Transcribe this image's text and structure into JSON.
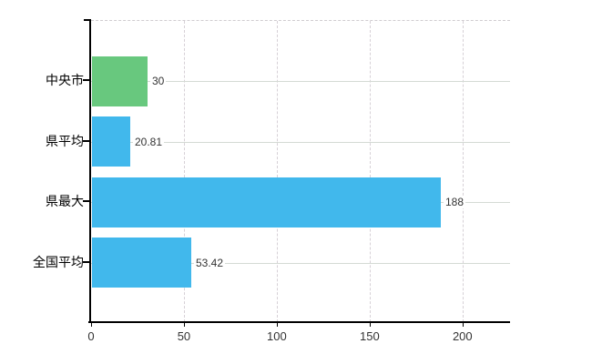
{
  "chart_data": {
    "type": "bar",
    "orientation": "horizontal",
    "title": "",
    "categories": [
      "中央市",
      "県平均",
      "県最大",
      "全国平均"
    ],
    "series": [
      {
        "name": "",
        "values": [
          30,
          20.81,
          188,
          53.42
        ]
      }
    ],
    "value_labels": [
      "30",
      "20.81",
      "188",
      "53.42"
    ],
    "bar_colors": [
      "#68c87e",
      "#41b8ec",
      "#41b8ec",
      "#41b8ec"
    ],
    "x_ticks": [
      "0",
      "50",
      "100",
      "150",
      "200"
    ],
    "x_tick_values": [
      0,
      50,
      100,
      150,
      200
    ],
    "x_min": 0,
    "x_max": 225.6,
    "grid": true,
    "legend_position": "none",
    "colors": {
      "axis": "#000000",
      "horizontal_grid": "#d4dad4",
      "vertical_grid": "#d6d0d6",
      "value_label_text": "#333333",
      "category_label_text": "#000000",
      "background": "#ffffff"
    }
  }
}
